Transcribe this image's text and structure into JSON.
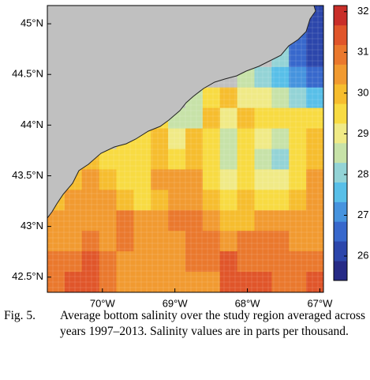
{
  "map": {
    "xlim": [
      -70.76,
      -66.95
    ],
    "ylim": [
      42.35,
      45.18
    ],
    "xticks": [
      {
        "value": -70,
        "label": "70°W"
      },
      {
        "value": -69,
        "label": "69°W"
      },
      {
        "value": -68,
        "label": "68°W"
      },
      {
        "value": -67,
        "label": "67°W"
      }
    ],
    "yticks": [
      {
        "value": 42.5,
        "label": "42.5°N"
      },
      {
        "value": 43,
        "label": "43°N"
      },
      {
        "value": 43.5,
        "label": "43.5°N"
      },
      {
        "value": 44,
        "label": "44°N"
      },
      {
        "value": 44.5,
        "label": "44.5°N"
      },
      {
        "value": 45,
        "label": "45°N"
      }
    ],
    "land_color": "#c0c0c0",
    "salinity_grid": [
      [
        null,
        null,
        null,
        null,
        null,
        null,
        null,
        null,
        null,
        null,
        null,
        null,
        null,
        null,
        null,
        26
      ],
      [
        null,
        null,
        null,
        null,
        null,
        null,
        null,
        null,
        null,
        null,
        null,
        null,
        null,
        null,
        26.5,
        26
      ],
      [
        null,
        null,
        null,
        null,
        null,
        null,
        null,
        null,
        null,
        null,
        null,
        null,
        null,
        28,
        26.8,
        26.3
      ],
      [
        null,
        null,
        null,
        null,
        null,
        null,
        null,
        null,
        null,
        null,
        null,
        28.5,
        28,
        27.5,
        27,
        26.8
      ],
      [
        null,
        null,
        null,
        null,
        null,
        null,
        null,
        null,
        28.5,
        29.5,
        29.8,
        29.2,
        28.8,
        28.5,
        28,
        27.8
      ],
      [
        null,
        null,
        null,
        null,
        null,
        null,
        29.3,
        28.5,
        28.3,
        29.8,
        28.8,
        29.8,
        29.5,
        29.3,
        29.3,
        29.5
      ],
      [
        null,
        null,
        null,
        null,
        29.7,
        29.5,
        29.8,
        29.2,
        29.8,
        29.5,
        28.6,
        29.7,
        29.2,
        28.6,
        29.3,
        30
      ],
      [
        null,
        null,
        29.8,
        29.7,
        29.5,
        29.3,
        30,
        29.6,
        30.2,
        29.3,
        28.7,
        29.6,
        28.5,
        28.2,
        29.5,
        30.2
      ],
      [
        null,
        29.9,
        30.3,
        30,
        29.7,
        29.4,
        30.3,
        30.5,
        30.4,
        29.5,
        29,
        29.7,
        28.8,
        28.8,
        29.7,
        30.3
      ],
      [
        29.8,
        30.5,
        30.7,
        30.3,
        29.8,
        29.6,
        30,
        30.5,
        30.6,
        30,
        29.4,
        29.8,
        29.5,
        29.6,
        30,
        30.5
      ],
      [
        30.3,
        30.6,
        30.3,
        30.6,
        30.9,
        30.6,
        30.5,
        30.8,
        30.8,
        30.5,
        30,
        30.2,
        30.3,
        30.5,
        30.5,
        30.6
      ],
      [
        30.7,
        30.6,
        30.8,
        30.6,
        30.8,
        30.6,
        30.4,
        30.6,
        30.8,
        30.9,
        30.5,
        30.8,
        31,
        30.8,
        30.6,
        30.7
      ],
      [
        30.8,
        31.1,
        31.3,
        30.8,
        30.5,
        30.3,
        30.3,
        30.6,
        30.8,
        31,
        31.2,
        31,
        30.8,
        30.8,
        30.9,
        30.8
      ],
      [
        31,
        31.3,
        31.4,
        31,
        30.7,
        30.5,
        30.7,
        30.5,
        30.3,
        30.5,
        31.2,
        31.4,
        31.2,
        31,
        31.1,
        31.4
      ]
    ]
  },
  "colorbar": {
    "clim": [
      25.4,
      32.15
    ],
    "ticks": [
      26,
      27,
      28,
      29,
      30,
      31,
      32
    ],
    "colormap": [
      "#262a86",
      "#2c46ab",
      "#3868cc",
      "#4693de",
      "#58bfe8",
      "#93d3d6",
      "#c7e2a8",
      "#f0ea86",
      "#f8db42",
      "#f6bd2e",
      "#f19a30",
      "#ea782d",
      "#e0552a",
      "#c92e29"
    ]
  },
  "caption": {
    "label": "Fig. 5.",
    "text": "Average bottom salinity over the study region averaged across years 1997–2013. Salinity values are in parts per thousand."
  }
}
